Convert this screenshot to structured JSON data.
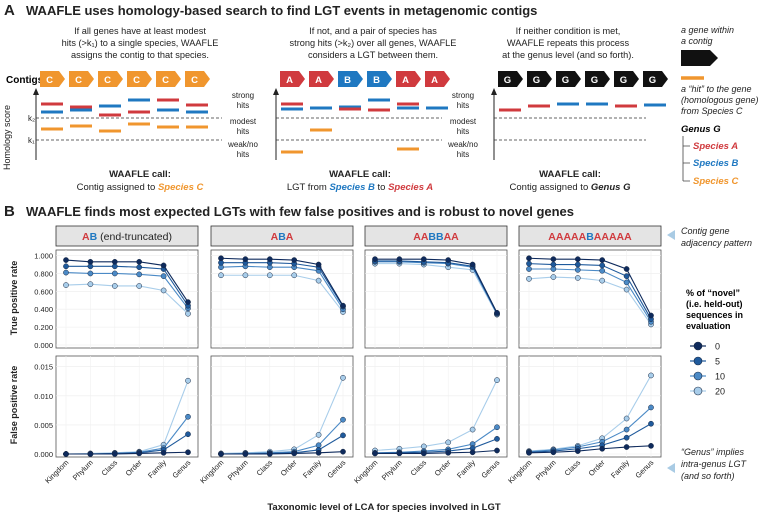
{
  "panel_a": {
    "letter": "A",
    "title": "WAAFLE uses homology-based search to find LGT events in metagenomic contigs",
    "scenarios": [
      {
        "desc": [
          "If all genes have at least modest",
          "hits (>k₁) to a single species, WAAFLE",
          "assigns the contig to that species."
        ],
        "genes": [
          "C",
          "C",
          "C",
          "C",
          "C",
          "C"
        ],
        "call_label": "WAAFLE call:",
        "call_text": "Contig assigned to ",
        "call_target": "Species C"
      },
      {
        "desc": [
          "If not, and a pair of species has",
          "strong hits (>k₂) over all genes, WAAFLE",
          "considers a LGT between them."
        ],
        "genes": [
          "A",
          "A",
          "B",
          "B",
          "A",
          "A"
        ],
        "call_label": "WAAFLE call:",
        "call_text": "LGT from ",
        "call_target": "Species B",
        "call_mid": " to ",
        "call_target2": "Species A"
      },
      {
        "desc": [
          "If neither condition is met,",
          "WAAFLE repeats this process",
          "at the genus level (and so forth)."
        ],
        "genes": [
          "G",
          "G",
          "G",
          "G",
          "G",
          "G"
        ],
        "call_label": "WAAFLE call:",
        "call_text": "Contig assigned to ",
        "call_target": "Genus G"
      }
    ],
    "contigs_label": "Contigs",
    "y_axis_label": "Homology score",
    "k2": "k₂",
    "k1": "k₁",
    "zones": [
      [
        "strong",
        "hits"
      ],
      [
        "modest",
        "hits"
      ],
      [
        "weak/no",
        "hits"
      ]
    ],
    "legend": {
      "gene_desc": [
        "a gene within",
        "a contig"
      ],
      "hit_desc": [
        "a “hit” to the gene",
        "(homologous gene)",
        "from Species C"
      ],
      "genus_title": "Genus G",
      "species": [
        "Species A",
        "Species B",
        "Species C"
      ]
    }
  },
  "panel_b": {
    "letter": "B",
    "title": "WAAFLE finds most expected LGTs with few false positives and is robust to novel genes",
    "facet_annotation": [
      "Contig gene",
      "adjacency pattern"
    ],
    "genus_annotation": [
      "“Genus” implies",
      "intra-genus LGT",
      "(and so forth)"
    ],
    "facets": [
      {
        "parts": [
          {
            "t": "A",
            "c": "a"
          },
          {
            "t": "B",
            "c": "b"
          },
          {
            "t": " (end-truncated)",
            "c": "k"
          }
        ]
      },
      {
        "parts": [
          {
            "t": "A",
            "c": "a"
          },
          {
            "t": "B",
            "c": "b"
          },
          {
            "t": "A",
            "c": "a"
          }
        ]
      },
      {
        "parts": [
          {
            "t": "AA",
            "c": "a"
          },
          {
            "t": "BB",
            "c": "b"
          },
          {
            "t": "AA",
            "c": "a"
          }
        ]
      },
      {
        "parts": [
          {
            "t": "AAAAA",
            "c": "a"
          },
          {
            "t": "B",
            "c": "b"
          },
          {
            "t": "AAAAA",
            "c": "a"
          }
        ]
      }
    ],
    "legend_title": [
      "% of “novel”",
      "(i.e. held-out)",
      "sequences in",
      "evaluation"
    ],
    "xlabel": "Taxonomic level of LCA for species involved in LGT"
  },
  "chart_data": [
    {
      "type": "line",
      "ylabel": "True positive rate",
      "ylim": [
        0,
        1
      ],
      "yticks": [
        "0.000",
        "0.200",
        "0.400",
        "0.600",
        "0.800",
        "1.000"
      ],
      "categories": [
        "Kingdom",
        "Phylum",
        "Class",
        "Order",
        "Family",
        "Genus"
      ],
      "legend_title": "% of “novel” (i.e. held-out) sequences in evaluation",
      "legend_placement": "right",
      "series_labels": [
        "0",
        "5",
        "10",
        "20"
      ],
      "series_colors": [
        "#0e2a5c",
        "#1f5a9c",
        "#4b8ac6",
        "#a8cdea"
      ],
      "facets": [
        {
          "pattern": "AB (end-truncated)",
          "series": [
            [
              0.95,
              0.93,
              0.93,
              0.93,
              0.89,
              0.48
            ],
            [
              0.88,
              0.88,
              0.88,
              0.87,
              0.85,
              0.44
            ],
            [
              0.81,
              0.8,
              0.8,
              0.79,
              0.77,
              0.41
            ],
            [
              0.67,
              0.68,
              0.66,
              0.66,
              0.61,
              0.35
            ]
          ]
        },
        {
          "pattern": "ABA",
          "series": [
            [
              0.97,
              0.96,
              0.96,
              0.95,
              0.9,
              0.44
            ],
            [
              0.92,
              0.92,
              0.92,
              0.91,
              0.87,
              0.43
            ],
            [
              0.87,
              0.88,
              0.87,
              0.87,
              0.83,
              0.4
            ],
            [
              0.78,
              0.78,
              0.78,
              0.78,
              0.72,
              0.37
            ]
          ]
        },
        {
          "pattern": "AABBAA",
          "series": [
            [
              0.96,
              0.96,
              0.96,
              0.95,
              0.9,
              0.36
            ],
            [
              0.94,
              0.94,
              0.93,
              0.92,
              0.88,
              0.35
            ],
            [
              0.93,
              0.93,
              0.92,
              0.91,
              0.87,
              0.35
            ],
            [
              0.91,
              0.91,
              0.9,
              0.87,
              0.84,
              0.34
            ]
          ]
        },
        {
          "pattern": "AAAAABAAAAA",
          "series": [
            [
              0.97,
              0.96,
              0.96,
              0.95,
              0.85,
              0.33
            ],
            [
              0.91,
              0.9,
              0.9,
              0.89,
              0.77,
              0.29
            ],
            [
              0.85,
              0.85,
              0.84,
              0.83,
              0.7,
              0.26
            ],
            [
              0.74,
              0.76,
              0.75,
              0.72,
              0.62,
              0.23
            ]
          ]
        }
      ]
    },
    {
      "type": "line",
      "ylabel": "False positive rate",
      "ylim": [
        0,
        0.017
      ],
      "yticks": [
        "0.000",
        "0.005",
        "0.010",
        "0.015"
      ],
      "categories": [
        "Kingdom",
        "Phylum",
        "Class",
        "Order",
        "Family",
        "Genus"
      ],
      "series_labels": [
        "0",
        "5",
        "10",
        "20"
      ],
      "series_colors": [
        "#0e2a5c",
        "#1f5a9c",
        "#4b8ac6",
        "#a8cdea"
      ],
      "facets": [
        {
          "pattern": "AB (end-truncated)",
          "series": [
            [
              0.0,
              0.0,
              0.0,
              0.0001,
              0.0002,
              0.0003
            ],
            [
              0.0,
              0.0,
              0.0001,
              0.0002,
              0.0007,
              0.0034
            ],
            [
              0.0,
              0.0,
              0.0001,
              0.0003,
              0.001,
              0.0064
            ],
            [
              0.0,
              0.0001,
              0.0002,
              0.0004,
              0.0016,
              0.0126
            ]
          ]
        },
        {
          "pattern": "ABA",
          "series": [
            [
              0.0,
              0.0,
              0.0,
              0.0001,
              0.0002,
              0.0004
            ],
            [
              0.0,
              0.0,
              0.0001,
              0.0002,
              0.0007,
              0.0032
            ],
            [
              0.0,
              0.0001,
              0.0002,
              0.0004,
              0.0015,
              0.0059
            ],
            [
              0.0001,
              0.0002,
              0.0004,
              0.0008,
              0.0033,
              0.0131
            ]
          ]
        },
        {
          "pattern": "AABBAA",
          "series": [
            [
              0.0001,
              0.0001,
              0.0001,
              0.0002,
              0.0003,
              0.0006
            ],
            [
              0.0001,
              0.0002,
              0.0003,
              0.0005,
              0.001,
              0.0026
            ],
            [
              0.0002,
              0.0003,
              0.0005,
              0.0008,
              0.0017,
              0.0046
            ],
            [
              0.0006,
              0.0009,
              0.0013,
              0.002,
              0.0042,
              0.0127
            ]
          ]
        },
        {
          "pattern": "AAAAABAAAAA",
          "series": [
            [
              0.0002,
              0.0003,
              0.0005,
              0.0009,
              0.0012,
              0.0014
            ],
            [
              0.0003,
              0.0005,
              0.0009,
              0.0015,
              0.0028,
              0.0052
            ],
            [
              0.0004,
              0.0007,
              0.0012,
              0.0021,
              0.0042,
              0.008
            ],
            [
              0.0005,
              0.0008,
              0.0014,
              0.0027,
              0.0061,
              0.0135
            ]
          ]
        }
      ]
    }
  ]
}
